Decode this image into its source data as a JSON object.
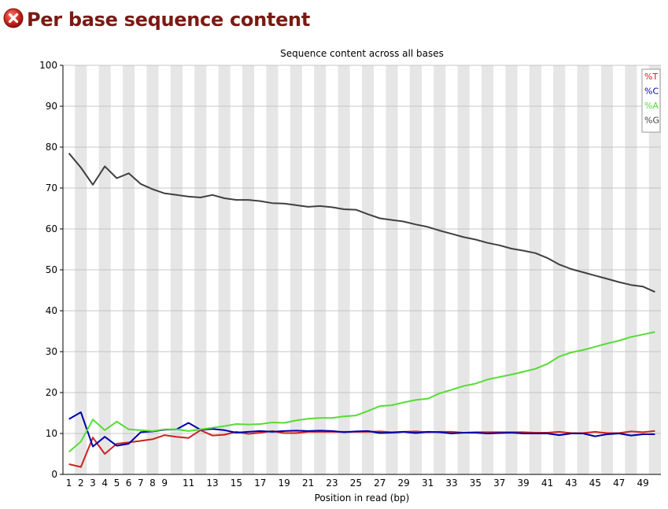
{
  "page": {
    "title": "Per base sequence content",
    "status_icon": "error-icon",
    "status_color": "#cc2222"
  },
  "chart_data": {
    "type": "line",
    "title": "Sequence content across all bases",
    "xlabel": "Position in read (bp)",
    "ylabel": "",
    "ylim": [
      0,
      100
    ],
    "yticks": [
      0,
      10,
      20,
      30,
      40,
      50,
      60,
      70,
      80,
      90,
      100
    ],
    "categories": [
      "1",
      "2",
      "3",
      "4",
      "5",
      "6",
      "7",
      "8",
      "9",
      "10",
      "11",
      "12",
      "13",
      "14",
      "15",
      "16",
      "17",
      "18",
      "19",
      "20",
      "21",
      "22",
      "23",
      "24",
      "25",
      "26",
      "27",
      "28",
      "29",
      "30",
      "31",
      "32",
      "33",
      "34",
      "35",
      "36",
      "37",
      "38",
      "39",
      "40",
      "41",
      "42",
      "43",
      "44",
      "45",
      "46",
      "47",
      "48",
      "49",
      "50"
    ],
    "xtick_labels": [
      "1",
      "2",
      "3",
      "4",
      "5",
      "6",
      "7",
      "8",
      "9",
      "",
      "11",
      "",
      "13",
      "",
      "15",
      "",
      "17",
      "",
      "19",
      "",
      "21",
      "",
      "23",
      "",
      "25",
      "",
      "27",
      "",
      "29",
      "",
      "31",
      "",
      "33",
      "",
      "35",
      "",
      "37",
      "",
      "39",
      "",
      "41",
      "",
      "43",
      "",
      "45",
      "",
      "47",
      "",
      "49",
      ""
    ],
    "grid": "alternating vertical bands",
    "legend_position": "top-right",
    "series": [
      {
        "name": "%T",
        "color": "#cc2222",
        "values": [
          2.5,
          1.8,
          9,
          5,
          7.5,
          7.8,
          8.2,
          8.6,
          9.6,
          9.2,
          8.9,
          10.8,
          9.5,
          9.7,
          10.4,
          9.9,
          10.2,
          10.6,
          10.1,
          10.1,
          10.4,
          10.4,
          10.4,
          10.4,
          10.4,
          10.4,
          10.5,
          10.3,
          10.4,
          10.5,
          10.3,
          10.4,
          10.4,
          10.2,
          10.3,
          10.3,
          10.3,
          10.3,
          10.3,
          10.2,
          10.2,
          10.4,
          10.1,
          10.1,
          10.4,
          10.1,
          10.1,
          10.5,
          10.3,
          10.6
        ]
      },
      {
        "name": "%C",
        "color": "#0000aa",
        "values": [
          13.5,
          15.2,
          6.8,
          9.2,
          7,
          7.5,
          10.3,
          10.5,
          10.9,
          11,
          12.6,
          10.9,
          11.1,
          10.8,
          10.2,
          10.4,
          10.6,
          10.4,
          10.6,
          10.7,
          10.6,
          10.7,
          10.6,
          10.3,
          10.5,
          10.6,
          10.1,
          10.2,
          10.4,
          10.1,
          10.4,
          10.3,
          10,
          10.2,
          10.2,
          10,
          10.1,
          10.2,
          10,
          10,
          10,
          9.6,
          10,
          10,
          9.3,
          9.8,
          10,
          9.5,
          9.8,
          9.8
        ]
      },
      {
        "name": "%A",
        "color": "#55dd33",
        "values": [
          5.5,
          8,
          13.4,
          10.8,
          12.9,
          11,
          10.8,
          10.6,
          11,
          11,
          10.6,
          11,
          11.4,
          11.8,
          12.3,
          12.2,
          12.3,
          12.7,
          12.6,
          13.2,
          13.6,
          13.8,
          13.8,
          14.2,
          14.4,
          15.5,
          16.7,
          16.9,
          17.6,
          18.2,
          18.5,
          19.8,
          20.7,
          21.6,
          22.2,
          23.2,
          23.8,
          24.4,
          25.1,
          25.8,
          27,
          28.8,
          29.8,
          30.4,
          31.2,
          32,
          32.7,
          33.6,
          34.2,
          34.8
        ]
      },
      {
        "name": "%G",
        "color": "#404040",
        "values": [
          78.5,
          75,
          70.8,
          75.3,
          72.4,
          73.6,
          71,
          69.7,
          68.7,
          68.3,
          67.9,
          67.7,
          68.3,
          67.5,
          67.1,
          67.1,
          66.8,
          66.3,
          66.2,
          65.8,
          65.4,
          65.6,
          65.3,
          64.8,
          64.7,
          63.6,
          62.6,
          62.2,
          61.8,
          61.1,
          60.5,
          59.6,
          58.8,
          58,
          57.4,
          56.6,
          56,
          55.2,
          54.7,
          54.1,
          52.9,
          51.3,
          50.2,
          49.4,
          48.6,
          47.8,
          47,
          46.3,
          45.9,
          44.6
        ]
      }
    ]
  }
}
